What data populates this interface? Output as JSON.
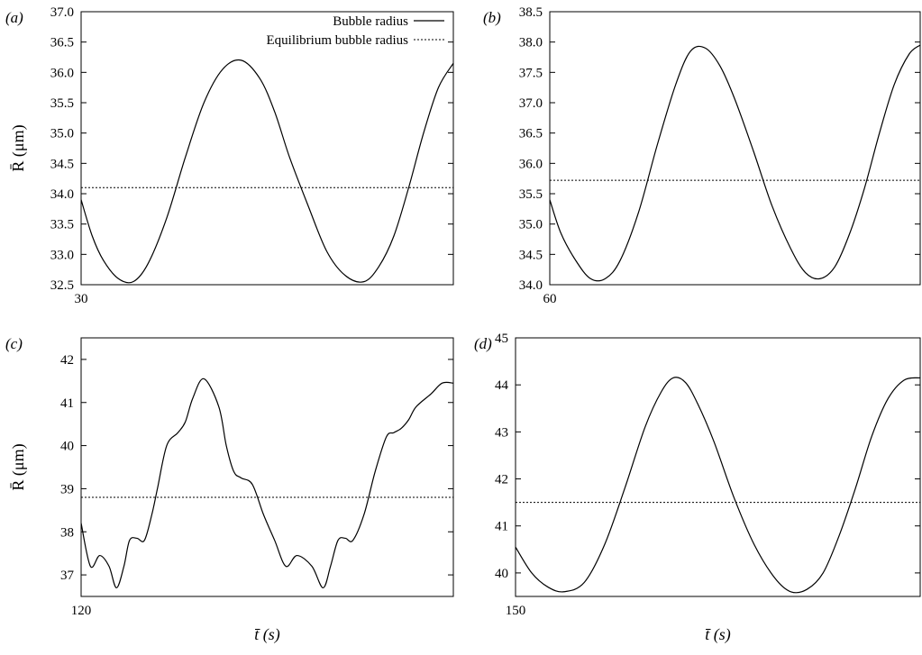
{
  "chart_data": [
    {
      "type": "line",
      "panel_label": "(a)",
      "ylabel": "R̄ (μm)",
      "xlabel": "",
      "x_tick_labels": [
        "30"
      ],
      "y_tick_labels": [
        "32.5",
        "33.0",
        "33.5",
        "34.0",
        "34.5",
        "35.0",
        "35.5",
        "36.0",
        "36.5",
        "37.0"
      ],
      "ylim": [
        32.5,
        37.0
      ],
      "legend": {
        "position": "top-right",
        "entries": [
          "Bubble radius",
          "Equilibrium bubble radius"
        ]
      },
      "series": [
        {
          "name": "Bubble radius",
          "style": "solid",
          "x": [
            0,
            0.03,
            0.06,
            0.1,
            0.14,
            0.18,
            0.23,
            0.28,
            0.33,
            0.38,
            0.43,
            0.48,
            0.52,
            0.56,
            0.61,
            0.66,
            0.71,
            0.76,
            0.8,
            0.84,
            0.88,
            0.92,
            0.96,
            1.0
          ],
          "y": [
            33.9,
            33.3,
            32.9,
            32.6,
            32.55,
            32.85,
            33.6,
            34.6,
            35.5,
            36.05,
            36.2,
            35.9,
            35.35,
            34.6,
            33.8,
            33.05,
            32.65,
            32.55,
            32.8,
            33.3,
            34.1,
            35.0,
            35.75,
            36.15
          ]
        },
        {
          "name": "Equilibrium bubble radius",
          "style": "dotted",
          "y_value": 34.1
        }
      ]
    },
    {
      "type": "line",
      "panel_label": "(b)",
      "ylabel": "",
      "xlabel": "",
      "x_tick_labels": [
        "60"
      ],
      "y_tick_labels": [
        "34.0",
        "34.5",
        "35.0",
        "35.5",
        "36.0",
        "36.5",
        "37.0",
        "37.5",
        "38.0",
        "38.5"
      ],
      "ylim": [
        34.0,
        38.5
      ],
      "series": [
        {
          "name": "Bubble radius",
          "style": "solid",
          "x": [
            0,
            0.03,
            0.07,
            0.11,
            0.15,
            0.19,
            0.24,
            0.29,
            0.34,
            0.38,
            0.42,
            0.46,
            0.5,
            0.55,
            0.6,
            0.65,
            0.69,
            0.73,
            0.77,
            0.81,
            0.85,
            0.89,
            0.93,
            0.97,
            1.0
          ],
          "y": [
            35.4,
            34.85,
            34.4,
            34.1,
            34.1,
            34.4,
            35.2,
            36.3,
            37.3,
            37.85,
            37.9,
            37.6,
            37.05,
            36.2,
            35.3,
            34.6,
            34.2,
            34.1,
            34.3,
            34.85,
            35.6,
            36.5,
            37.3,
            37.8,
            37.95
          ]
        },
        {
          "name": "Equilibrium bubble radius",
          "style": "dotted",
          "y_value": 35.72
        }
      ]
    },
    {
      "type": "line",
      "panel_label": "(c)",
      "ylabel": "R̄ (μm)",
      "xlabel": "t̄ (s)",
      "x_tick_labels": [
        "120"
      ],
      "y_tick_labels": [
        "37",
        "38",
        "39",
        "40",
        "41",
        "42"
      ],
      "ylim": [
        36.5,
        42.5
      ],
      "series": [
        {
          "name": "Bubble radius",
          "style": "solid",
          "x": [
            0,
            0.025,
            0.05,
            0.075,
            0.095,
            0.115,
            0.13,
            0.15,
            0.17,
            0.19,
            0.205,
            0.23,
            0.26,
            0.28,
            0.3,
            0.33,
            0.37,
            0.39,
            0.41,
            0.43,
            0.46,
            0.49,
            0.52,
            0.55,
            0.58,
            0.62,
            0.65,
            0.67,
            0.69,
            0.71,
            0.73,
            0.76,
            0.79,
            0.82,
            0.84,
            0.86,
            0.88,
            0.9,
            0.94,
            0.97,
            1.0
          ],
          "y": [
            38.2,
            37.2,
            37.45,
            37.2,
            36.7,
            37.2,
            37.8,
            37.85,
            37.8,
            38.4,
            39.0,
            40.0,
            40.3,
            40.55,
            41.1,
            41.55,
            40.9,
            40.0,
            39.4,
            39.25,
            39.1,
            38.4,
            37.8,
            37.2,
            37.45,
            37.2,
            36.7,
            37.2,
            37.8,
            37.85,
            37.8,
            38.4,
            39.4,
            40.2,
            40.3,
            40.4,
            40.6,
            40.9,
            41.2,
            41.45,
            41.45
          ]
        },
        {
          "name": "Equilibrium bubble radius",
          "style": "dotted",
          "y_value": 38.8
        }
      ]
    },
    {
      "type": "line",
      "panel_label": "(d)",
      "ylabel": "",
      "xlabel": "t̄ (s)",
      "x_tick_labels": [
        "150"
      ],
      "y_tick_labels": [
        "40",
        "41",
        "42",
        "43",
        "44",
        "45"
      ],
      "ylim": [
        39.5,
        45.0
      ],
      "series": [
        {
          "name": "Bubble radius",
          "style": "solid",
          "x": [
            0,
            0.04,
            0.08,
            0.12,
            0.17,
            0.22,
            0.27,
            0.32,
            0.36,
            0.39,
            0.42,
            0.45,
            0.49,
            0.54,
            0.59,
            0.64,
            0.68,
            0.72,
            0.76,
            0.8,
            0.84,
            0.88,
            0.92,
            0.96,
            1.0
          ],
          "y": [
            40.55,
            40.0,
            39.7,
            39.6,
            39.8,
            40.6,
            41.8,
            43.1,
            43.85,
            44.15,
            44.05,
            43.6,
            42.8,
            41.6,
            40.6,
            39.9,
            39.6,
            39.65,
            40.0,
            40.8,
            41.8,
            42.9,
            43.7,
            44.1,
            44.15
          ]
        },
        {
          "name": "Equilibrium bubble radius",
          "style": "dotted",
          "y_value": 41.5
        }
      ]
    }
  ]
}
